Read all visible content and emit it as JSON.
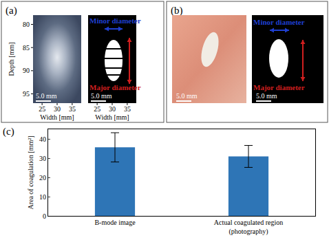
{
  "panels": {
    "a": {
      "label": "(a)",
      "ylabel": "Depth [mm]",
      "xlabel": "Width [mm]",
      "xlim": [
        22,
        38
      ],
      "xticks": [
        25,
        30,
        35
      ],
      "ylim": [
        78,
        97
      ],
      "yticks": [
        80,
        85,
        90,
        95
      ],
      "minor_label": "Minor diameter",
      "major_label": "Major diameter",
      "scale_bar": "5.0 mm"
    },
    "b": {
      "label": "(b)",
      "minor_label": "Minor diameter",
      "major_label": "Major diameter",
      "scale_bar": "5.0 mm"
    }
  },
  "chart_data": {
    "panel_label": "(c)",
    "type": "bar",
    "categories": [
      "B-mode image",
      "Actual coagulated region\n(photography)"
    ],
    "values": [
      35.6,
      30.9
    ],
    "errors": [
      7.6,
      5.7
    ],
    "color": "#2e75b6",
    "ylabel": "Area of coagulation [mm²]",
    "ylim": [
      0,
      45
    ],
    "yticks": [
      0,
      10,
      20,
      30,
      40
    ],
    "grid": false
  }
}
